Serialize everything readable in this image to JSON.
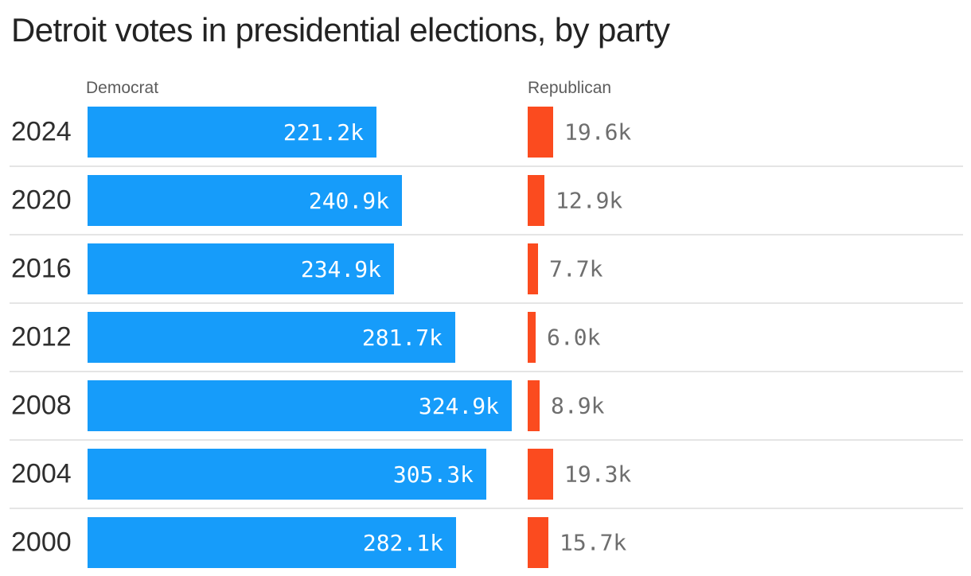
{
  "chart_data": {
    "type": "bar",
    "orientation": "horizontal",
    "title": "Detroit votes in presidential elections, by party",
    "categories": [
      "2024",
      "2020",
      "2016",
      "2012",
      "2008",
      "2004",
      "2000"
    ],
    "series": [
      {
        "name": "Democrat",
        "color": "#169cfa",
        "values_thousands": [
          221.2,
          240.9,
          234.9,
          281.7,
          324.9,
          305.3,
          282.1
        ],
        "labels": [
          "221.2k",
          "240.9k",
          "234.9k",
          "281.7k",
          "324.9k",
          "305.3k",
          "282.1k"
        ]
      },
      {
        "name": "Republican",
        "color": "#fb4b1f",
        "values_thousands": [
          19.6,
          12.9,
          7.7,
          6.0,
          8.9,
          19.3,
          15.7
        ],
        "labels": [
          "19.6k",
          "12.9k",
          "7.7k",
          "6.0k",
          "8.9k",
          "19.3k",
          "15.7k"
        ]
      }
    ],
    "value_label_position": {
      "democrat": "inside-end",
      "republican": "outside-end"
    },
    "grid": false,
    "legend_position": "column-headers",
    "separator_color": "#e5e5e5",
    "value_label_colors": {
      "democrat": "#ffffff",
      "republican": "#6e6e6e"
    }
  }
}
